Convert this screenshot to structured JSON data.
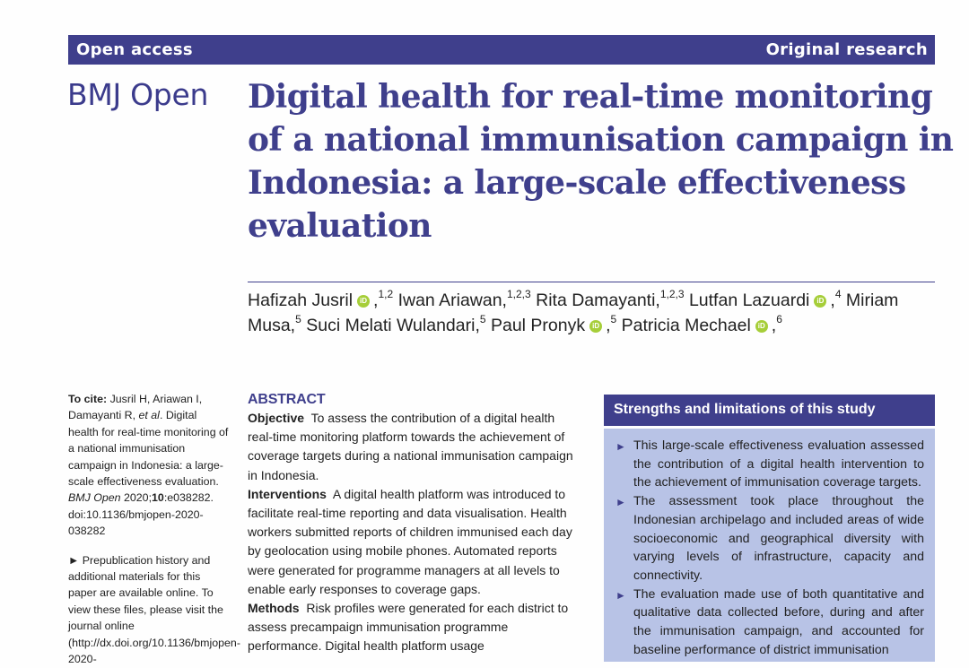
{
  "header": {
    "left_label": "Open access",
    "right_label": "Original research"
  },
  "journal_logo": "BMJ Open",
  "article": {
    "title": "Digital health for real-time monitoring of a national immunisation campaign in Indonesia: a large-scale effectiveness evaluation"
  },
  "authors": [
    {
      "name": "Hafizah Jusril",
      "orcid": true,
      "aff": "1,2",
      "sep": " "
    },
    {
      "name": "Iwan Ariawan,",
      "orcid": false,
      "aff": "1,2,3",
      "sep": " "
    },
    {
      "name": "Rita Damayanti,",
      "orcid": false,
      "aff": "1,2,3",
      "sep": " "
    },
    {
      "name": "Lutfan Lazuardi",
      "orcid": true,
      "aff": "4",
      "sep": " "
    },
    {
      "name": "Miriam Musa,",
      "orcid": false,
      "aff": "5",
      "sep": " "
    },
    {
      "name": "Suci Melati Wulandari,",
      "orcid": false,
      "aff": "5",
      "sep": " "
    },
    {
      "name": "Paul Pronyk",
      "orcid": true,
      "aff": "5",
      "sep": " "
    },
    {
      "name": "Patricia Mechael",
      "orcid": true,
      "aff": "6",
      "sep": ""
    }
  ],
  "orcid_label": "iD",
  "sidebar": {
    "cite_label": "To cite:",
    "cite_text_1": "Jusril H, Ariawan I, Damayanti R,",
    "cite_etal": "et al",
    "cite_text_2": ". Digital health for real-time monitoring of a national immunisation campaign in Indonesia: a large-scale effectiveness evaluation.",
    "cite_journal": "BMJ Open",
    "cite_year": "2020;",
    "cite_volume": "10",
    "cite_text_3": ":e038282. doi:10.1136/bmjopen-2020-038282",
    "prepub_text": "► Prepublication history and additional materials for this paper are available online. To view these files, please visit the journal online (http://dx.doi.org/10.1136/bmjopen-2020-"
  },
  "abstract": {
    "heading": "ABSTRACT",
    "sections": [
      {
        "label": "Objective",
        "text": "To assess the contribution of a digital health real-time monitoring platform towards the achievement of coverage targets during a national immunisation campaign in Indonesia."
      },
      {
        "label": "Interventions",
        "text": "A digital health platform was introduced to facilitate real-time reporting and data visualisation. Health workers submitted reports of children immunised each day by geolocation using mobile phones. Automated reports were generated for programme managers at all levels to enable early responses to coverage gaps."
      },
      {
        "label": "Methods",
        "text": "Risk profiles were generated for each district to assess precampaign immunisation programme performance. Digital health platform usage"
      }
    ]
  },
  "strengths_box": {
    "heading": "Strengths and limitations of this study",
    "items": [
      "This large-scale effectiveness evaluation assessed the contribution of a digital health intervention to the achievement of immunisation coverage targets.",
      "The assessment took place throughout the Indonesian archipelago and included areas of wide socioeconomic and geographical diversity with varying levels of infrastructure, capacity and connectivity.",
      "The evaluation made use of both quantitative and qualitative data collected before, during and after the immunisation campaign, and accounted for baseline performance of district immunisation"
    ]
  }
}
